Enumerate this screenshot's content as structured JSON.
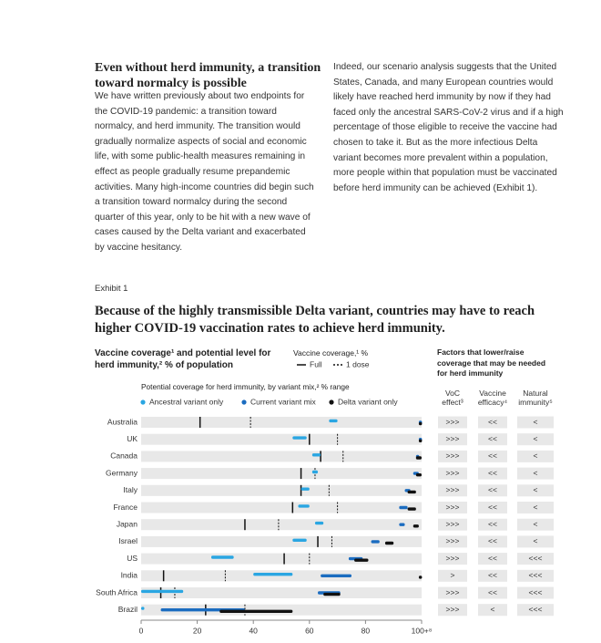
{
  "article": {
    "left": {
      "heading": "Even without herd immunity, a transition toward normalcy is possible",
      "body": "We have written previously about two endpoints for the COVID-19 pandemic: a transition toward normalcy, and herd immunity. The transition would gradually normalize aspects of social and economic life, with some public-health measures remaining in effect as people gradually resume prepandemic activities. Many high-income countries did begin such a transition toward normalcy during the second quarter of this year, only to be hit with a new wave of cases caused by the Delta variant and exacerbated by vaccine hesitancy."
    },
    "right": {
      "body": "Indeed, our scenario analysis suggests that the United States, Canada, and many European countries would likely have reached herd immunity by now if they had faced only the ancestral SARS-CoV-2 virus and if a high percentage of those eligible to receive the vaccine had chosen to take it. But as the more infectious Delta variant becomes more prevalent within a population, more people within that population must be vaccinated before herd immunity can be achieved (Exhibit 1)."
    }
  },
  "exhibit": {
    "label": "Exhibit 1",
    "title": "Because of the highly transmissible Delta variant, countries may have to reach higher COVID-19 vaccination rates to achieve herd immunity."
  },
  "chart_data": {
    "type": "range",
    "title": "Vaccine coverage¹ and potential level for herd immunity,² % of population",
    "coverage_legend_title": "Vaccine coverage,¹ %",
    "range_legend_title": "Potential coverage for herd immunity, by variant mix,² % range",
    "categories": [
      "Australia",
      "UK",
      "Canada",
      "Germany",
      "Italy",
      "France",
      "Japan",
      "Israel",
      "US",
      "India",
      "South Africa",
      "Brazil"
    ],
    "series": [
      {
        "name": "Full",
        "color": "#111111",
        "style": "solid-tick",
        "values": [
          21,
          60,
          64,
          57,
          57,
          54,
          37,
          63,
          51,
          8,
          7,
          23
        ]
      },
      {
        "name": "1 dose",
        "color": "#111111",
        "style": "dashed-tick",
        "values": [
          39,
          70,
          72,
          62,
          67,
          70,
          49,
          68,
          60,
          30,
          12,
          37
        ]
      },
      {
        "name": "Ancestral variant only",
        "color": "#2aa6e2",
        "style": "bar",
        "values": [
          [
            67,
            70
          ],
          [
            54,
            59
          ],
          [
            61,
            64
          ],
          [
            61,
            63
          ],
          [
            57,
            60
          ],
          [
            56,
            60
          ],
          [
            62,
            65
          ],
          [
            54,
            59
          ],
          [
            25,
            33
          ],
          [
            40,
            54
          ],
          [
            0,
            15
          ],
          [
            0,
            1
          ]
        ]
      },
      {
        "name": "Current variant mix",
        "color": "#1b6cc0",
        "style": "bar",
        "values": [
          [
            99,
            100
          ],
          [
            99,
            100
          ],
          [
            98,
            99
          ],
          [
            97,
            99
          ],
          [
            94,
            96
          ],
          [
            92,
            95
          ],
          [
            92,
            94
          ],
          [
            82,
            85
          ],
          [
            74,
            79
          ],
          [
            64,
            75
          ],
          [
            63,
            71
          ],
          [
            7,
            37
          ]
        ]
      },
      {
        "name": "Delta variant only",
        "color": "#111111",
        "style": "bar",
        "values": [
          [
            99,
            100
          ],
          [
            99,
            100
          ],
          [
            98,
            100
          ],
          [
            98,
            100
          ],
          [
            95,
            98
          ],
          [
            95,
            98
          ],
          [
            97,
            99
          ],
          [
            87,
            90
          ],
          [
            76,
            81
          ],
          [
            99,
            100
          ],
          [
            65,
            71
          ],
          [
            28,
            54
          ]
        ]
      }
    ],
    "xlim": [
      0,
      100
    ],
    "xticks": [
      0,
      20,
      40,
      60,
      80,
      {
        "value": 100,
        "label": "100+⁸"
      }
    ]
  },
  "factors": {
    "title": "Factors that lower/raise coverage that may be needed for herd immunity",
    "columns": [
      "VoC effect³",
      "Vaccine efficacy⁴",
      "Natural immunity⁵"
    ],
    "rows": [
      [
        ">>>",
        "<<",
        "<"
      ],
      [
        ">>>",
        "<<",
        "<"
      ],
      [
        ">>>",
        "<<",
        "<"
      ],
      [
        ">>>",
        "<<",
        "<"
      ],
      [
        ">>>",
        "<<",
        "<"
      ],
      [
        ">>>",
        "<<",
        "<"
      ],
      [
        ">>>",
        "<<",
        "<"
      ],
      [
        ">>>",
        "<<",
        "<"
      ],
      [
        ">>>",
        "<<",
        "<<<"
      ],
      [
        ">",
        "<<",
        "<<<"
      ],
      [
        ">>>",
        "<<",
        "<<<"
      ],
      [
        ">>>",
        "<",
        "<<<"
      ]
    ]
  }
}
